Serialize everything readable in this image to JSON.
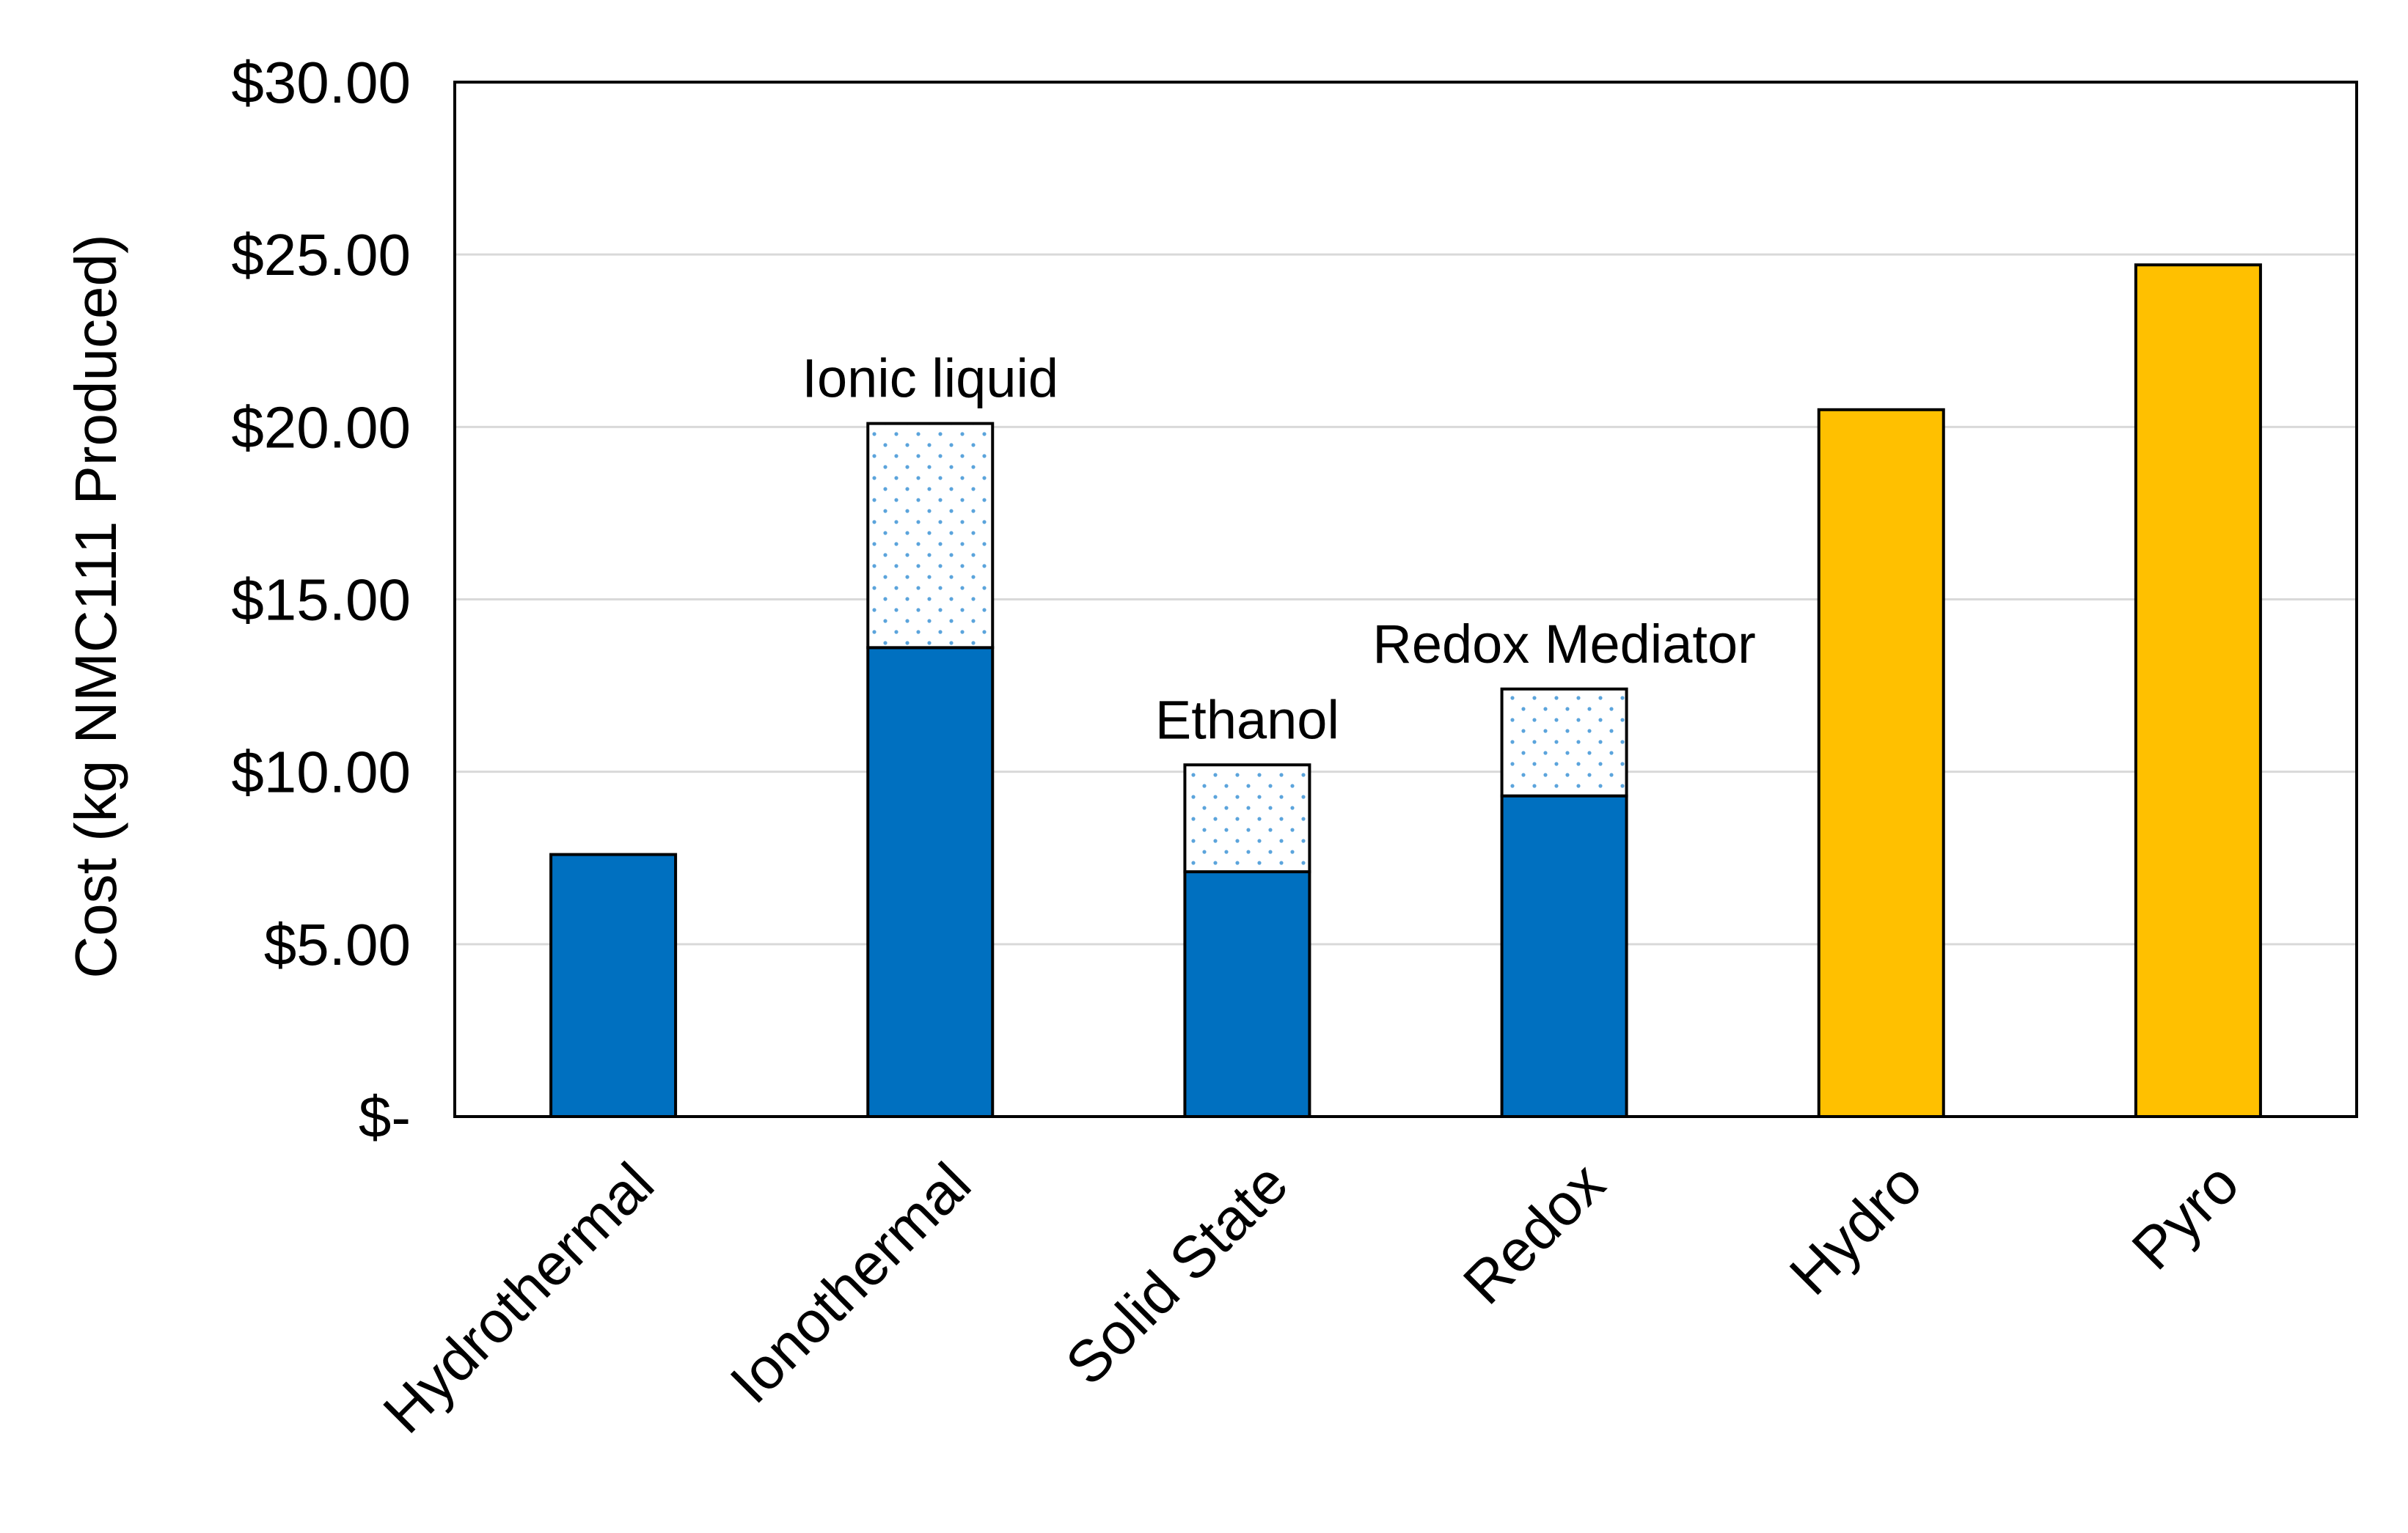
{
  "chart_data": {
    "type": "bar",
    "stacked": true,
    "title": "",
    "xlabel": "",
    "ylabel": "Cost (kg NMC111 Produced)",
    "ylim": [
      0,
      30
    ],
    "ytick_values": [
      0,
      5,
      10,
      15,
      20,
      25,
      30
    ],
    "ytick_labels": [
      "$-",
      "$5.00",
      "$10.00",
      "$15.00",
      "$20.00",
      "$25.00",
      "$30.00"
    ],
    "grid": true,
    "legend": "none",
    "categories": [
      "Hydrothermal",
      "Ionothermal",
      "Solid State",
      "Redox",
      "Hydro",
      "Pyro"
    ],
    "series": [
      {
        "values": [
          7.6,
          13.6,
          7.1,
          9.3,
          20.5,
          24.7
        ],
        "colors": [
          "#0070c0",
          "#0070c0",
          "#0070c0",
          "#0070c0",
          "#ffc000",
          "#ffc000"
        ],
        "pattern": "solid"
      },
      {
        "values": [
          0,
          6.5,
          3.1,
          3.1,
          0,
          0
        ],
        "colors": [
          "#5ba4dc",
          "#5ba4dc",
          "#5ba4dc",
          "#5ba4dc",
          "#5ba4dc",
          "#5ba4dc"
        ],
        "pattern": "dotted"
      }
    ],
    "annotations": [
      {
        "category": "Ionothermal",
        "text": "Ionic liquid"
      },
      {
        "category": "Solid State",
        "text": "Ethanol"
      },
      {
        "category": "Redox",
        "text": "Redox Mediator"
      }
    ]
  }
}
